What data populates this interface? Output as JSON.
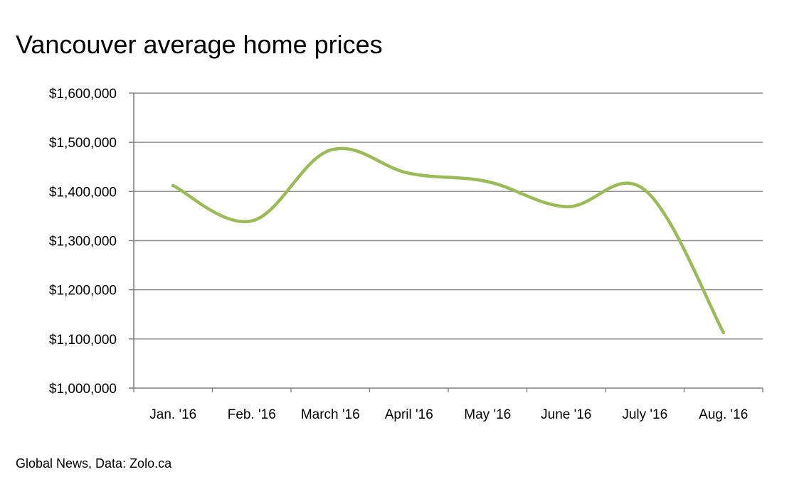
{
  "chart_data": {
    "type": "line",
    "title": "Vancouver average home prices",
    "xlabel": "",
    "ylabel": "",
    "categories": [
      "Jan. '16",
      "Feb. '16",
      "March '16",
      "April '16",
      "May '16",
      "June '16",
      "July '16",
      "Aug. '16"
    ],
    "series": [
      {
        "values": [
          1412000,
          1340000,
          1484000,
          1437000,
          1420000,
          1369000,
          1403000,
          1113000
        ],
        "color": "#9bbb59"
      }
    ],
    "ylim": [
      1000000,
      1600000
    ],
    "yticks": [
      1000000,
      1100000,
      1200000,
      1300000,
      1400000,
      1500000,
      1600000
    ],
    "ytick_labels": [
      "$1,000,000",
      "$1,100,000",
      "$1,200,000",
      "$1,300,000",
      "$1,400,000",
      "$1,500,000",
      "$1,600,000"
    ],
    "grid": true,
    "legend": "none",
    "gridline_color": "#8c8c8c",
    "axis_color": "#808080"
  },
  "source": "Global News, Data: Zolo.ca"
}
